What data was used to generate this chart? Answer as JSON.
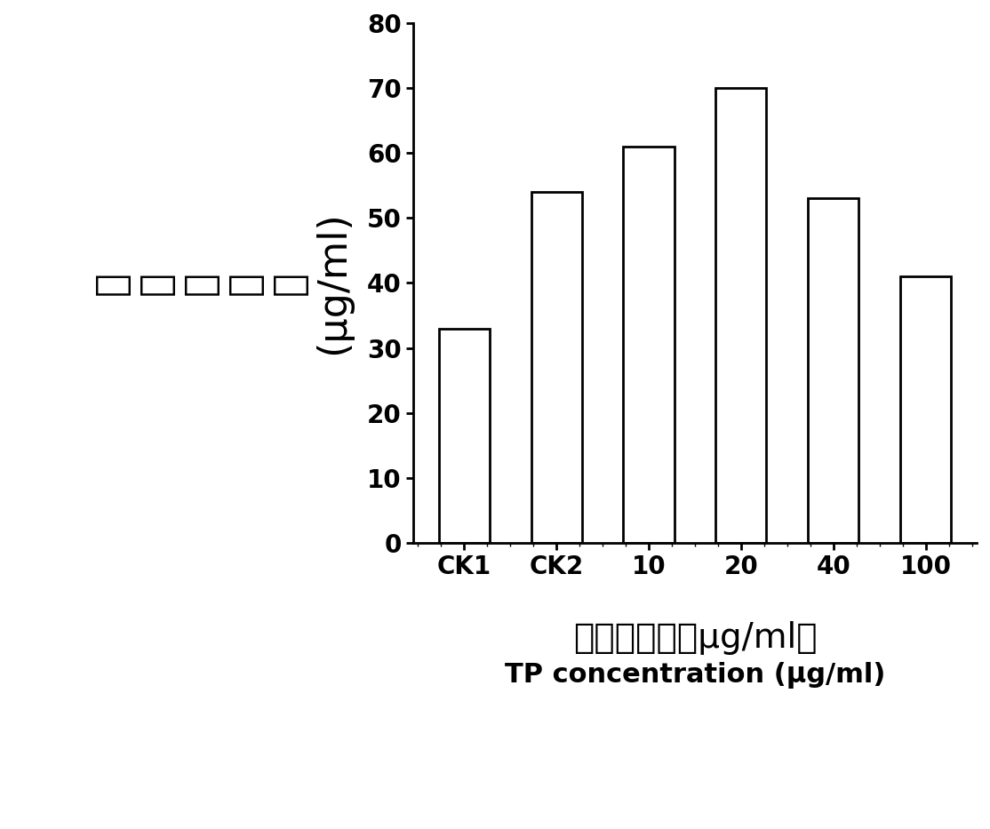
{
  "categories": [
    "CK1",
    "CK2",
    "10",
    "20",
    "40",
    "100"
  ],
  "values": [
    33,
    54,
    61,
    70,
    53,
    41
  ],
  "bar_color": "#ffffff",
  "bar_edgecolor": "#000000",
  "bar_linewidth": 2.0,
  "ylim": [
    0,
    80
  ],
  "yticks": [
    0,
    10,
    20,
    30,
    40,
    50,
    60,
    70,
    80
  ],
  "ylabel_chinese": "脂氨酸含量",
  "ylabel_unit": "(μg/ml)",
  "xlabel_chinese": "茶多酚浓度（μg/ml）",
  "xlabel_english": "TP concentration (μg/ml)",
  "background_color": "#ffffff",
  "bar_width": 0.55,
  "tick_fontsize": 20,
  "ylabel_fontsize_chinese": 32,
  "ylabel_fontsize_unit": 20,
  "xlabel_fontsize_chinese": 28,
  "xlabel_fontsize_english": 22
}
